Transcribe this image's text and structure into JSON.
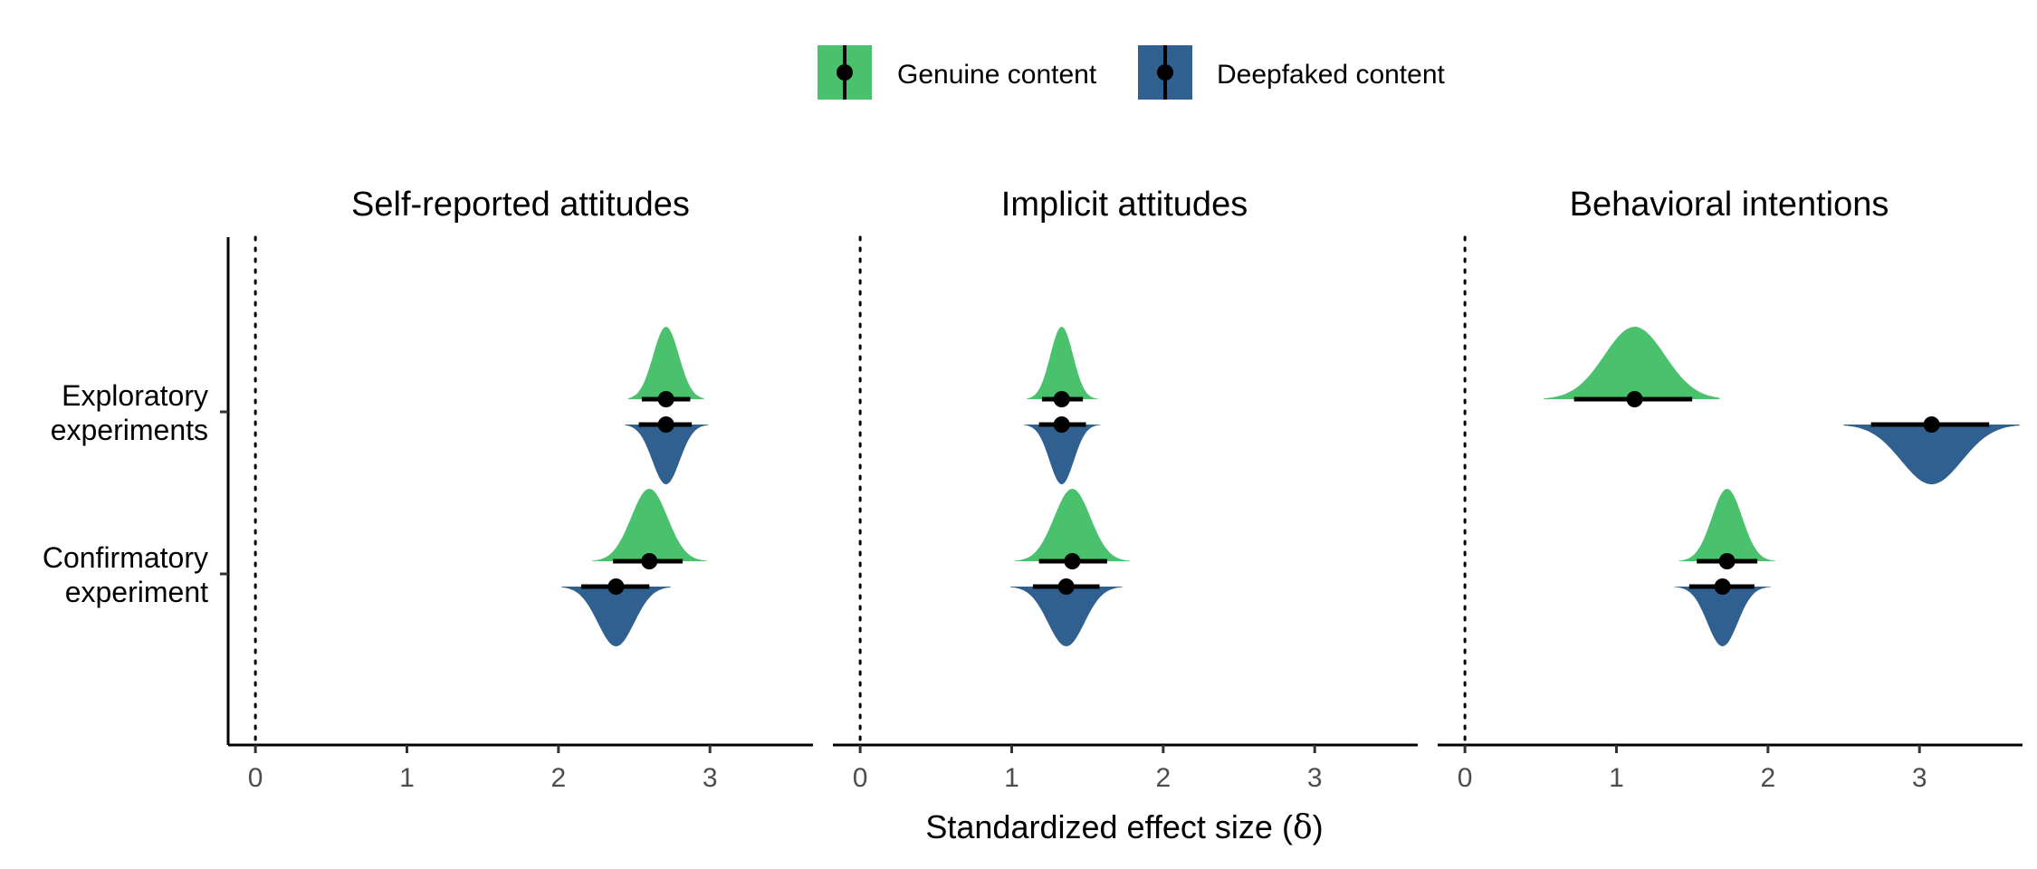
{
  "colors": {
    "genuine": "#49C16D",
    "deepfaked": "#30608F"
  },
  "legend": {
    "genuine_label": "Genuine content",
    "deepfaked_label": "Deepfaked content"
  },
  "xaxis": {
    "label": "Standardized effect size (",
    "label_symbol": "δ",
    "label_end": ")",
    "ticks": [
      0,
      1,
      2,
      3
    ],
    "tick_labels": [
      "0",
      "1",
      "2",
      "3"
    ]
  },
  "chart_data": {
    "type": "halfeye",
    "xlim": [
      -0.18,
      3.68
    ],
    "categories": [
      {
        "line1": "Exploratory",
        "line2": "experiments"
      },
      {
        "line1": "Confirmatory",
        "line2": "experiment"
      }
    ],
    "reference_line": 0,
    "panels": [
      {
        "title": "Self-reported attitudes",
        "estimates": [
          {
            "category": 0,
            "series": "genuine",
            "point": 2.71,
            "ci": [
              2.55,
              2.87
            ],
            "sd": 0.085,
            "range": [
              2.46,
              2.96
            ]
          },
          {
            "category": 0,
            "series": "deepfaked",
            "point": 2.71,
            "ci": [
              2.53,
              2.88
            ],
            "sd": 0.09,
            "range": [
              2.44,
              2.99
            ]
          },
          {
            "category": 1,
            "series": "genuine",
            "point": 2.6,
            "ci": [
              2.36,
              2.82
            ],
            "sd": 0.12,
            "range": [
              2.22,
              2.98
            ]
          },
          {
            "category": 1,
            "series": "deepfaked",
            "point": 2.38,
            "ci": [
              2.15,
              2.6
            ],
            "sd": 0.12,
            "range": [
              2.02,
              2.74
            ]
          }
        ]
      },
      {
        "title": "Implicit attitudes",
        "estimates": [
          {
            "category": 0,
            "series": "genuine",
            "point": 1.33,
            "ci": [
              1.2,
              1.47
            ],
            "sd": 0.075,
            "range": [
              1.1,
              1.57
            ]
          },
          {
            "category": 0,
            "series": "deepfaked",
            "point": 1.33,
            "ci": [
              1.18,
              1.49
            ],
            "sd": 0.08,
            "range": [
              1.08,
              1.59
            ]
          },
          {
            "category": 1,
            "series": "genuine",
            "point": 1.4,
            "ci": [
              1.18,
              1.63
            ],
            "sd": 0.12,
            "range": [
              1.02,
              1.78
            ]
          },
          {
            "category": 1,
            "series": "deepfaked",
            "point": 1.36,
            "ci": [
              1.14,
              1.58
            ],
            "sd": 0.12,
            "range": [
              0.99,
              1.73
            ]
          }
        ]
      },
      {
        "title": "Behavioral intentions",
        "estimates": [
          {
            "category": 0,
            "series": "genuine",
            "point": 1.12,
            "ci": [
              0.72,
              1.5
            ],
            "sd": 0.2,
            "range": [
              0.52,
              1.68
            ]
          },
          {
            "category": 0,
            "series": "deepfaked",
            "point": 3.08,
            "ci": [
              2.68,
              3.46
            ],
            "sd": 0.2,
            "range": [
              2.5,
              3.66
            ]
          },
          {
            "category": 1,
            "series": "genuine",
            "point": 1.73,
            "ci": [
              1.53,
              1.93
            ],
            "sd": 0.1,
            "range": [
              1.41,
              2.05
            ]
          },
          {
            "category": 1,
            "series": "deepfaked",
            "point": 1.7,
            "ci": [
              1.48,
              1.91
            ],
            "sd": 0.1,
            "range": [
              1.38,
              2.02
            ]
          }
        ]
      }
    ]
  }
}
